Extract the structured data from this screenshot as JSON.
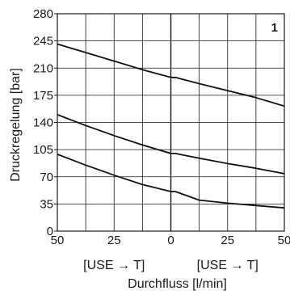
{
  "chart_data": {
    "type": "line",
    "panel_number": "1",
    "xlabel": "Durchfluss [l/min]",
    "ylabel": "Druckregelung [bar]",
    "x_direction_labels": [
      "[USE → T]",
      "[USE → T]"
    ],
    "xlim": [
      -50,
      50
    ],
    "ylim": [
      0,
      280
    ],
    "x_ticks": [
      -50,
      -25,
      0,
      25,
      50
    ],
    "x_tick_labels": [
      "50",
      "25",
      "0",
      "25",
      "50"
    ],
    "y_ticks": [
      0,
      35,
      70,
      105,
      140,
      175,
      210,
      245,
      280
    ],
    "y_tick_labels": [
      "0",
      "35",
      "70",
      "105",
      "140",
      "175",
      "210",
      "245",
      "280"
    ],
    "grid": true,
    "series": [
      {
        "x": [
          -50,
          -37.5,
          -25,
          -12.5,
          0,
          2,
          12.5,
          25,
          37.5,
          50
        ],
        "y": [
          241,
          230,
          219,
          208,
          198,
          198,
          190,
          181,
          172,
          161
        ]
      },
      {
        "x": [
          -50,
          -37.5,
          -25,
          -12.5,
          0,
          2,
          12.5,
          25,
          37.5,
          50
        ],
        "y": [
          150,
          136,
          123,
          111,
          100,
          100,
          94,
          87,
          81,
          74
        ]
      },
      {
        "x": [
          -50,
          -37.5,
          -25,
          -12.5,
          0,
          2,
          12.5,
          25,
          37.5,
          50
        ],
        "y": [
          99,
          85,
          72,
          60,
          51,
          51,
          40,
          36,
          33,
          30
        ]
      }
    ]
  }
}
